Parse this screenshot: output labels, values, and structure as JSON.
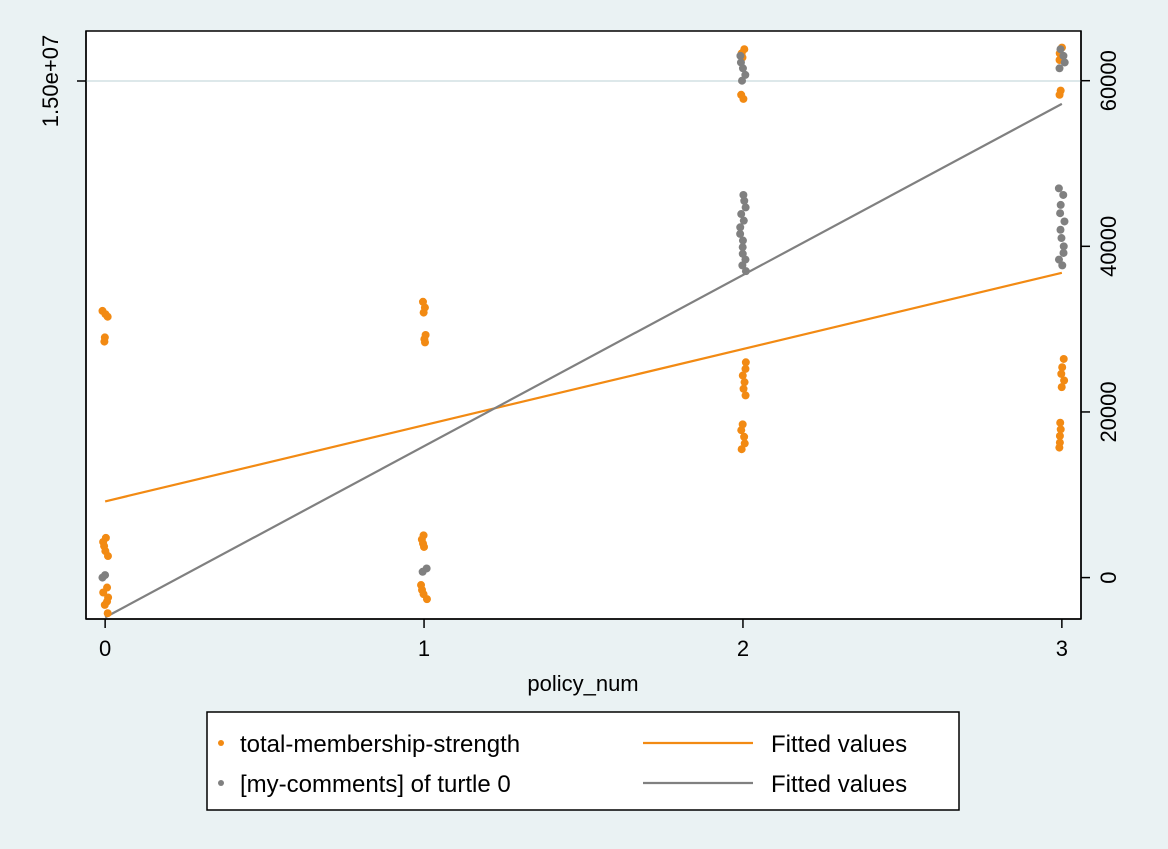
{
  "chart_data": {
    "type": "scatter",
    "xlabel": "policy_num",
    "x_ticks": [
      "0",
      "1",
      "2",
      "3"
    ],
    "xlim": [
      -0.06,
      3.06
    ],
    "left_axis": {
      "label_tick": "1.50e+07",
      "tick_value": 15000000
    },
    "right_axis": {
      "ticks": [
        "0",
        "20000",
        "40000",
        "60000"
      ],
      "ylim": [
        -5000,
        66000
      ]
    },
    "grid": true,
    "legend_position": "bottom",
    "series": [
      {
        "name": "total-membership-strength",
        "kind": "scatter",
        "color": "#f28a13",
        "points": [
          {
            "x": 0,
            "y": 31500
          },
          {
            "x": 0,
            "y": 32200
          },
          {
            "x": 0,
            "y": 31800
          },
          {
            "x": 0,
            "y": 28500
          },
          {
            "x": 0,
            "y": 29000
          },
          {
            "x": 0,
            "y": 4800
          },
          {
            "x": 0,
            "y": 4300
          },
          {
            "x": 0,
            "y": 3800
          },
          {
            "x": 0,
            "y": 3200
          },
          {
            "x": 0,
            "y": 2600
          },
          {
            "x": 0,
            "y": -1200
          },
          {
            "x": 0,
            "y": -1800
          },
          {
            "x": 0,
            "y": -2400
          },
          {
            "x": 0,
            "y": -2900
          },
          {
            "x": 0,
            "y": -3300
          },
          {
            "x": 0,
            "y": -4300
          },
          {
            "x": 1,
            "y": 32000
          },
          {
            "x": 1,
            "y": 32600
          },
          {
            "x": 1,
            "y": 33300
          },
          {
            "x": 1,
            "y": 29300
          },
          {
            "x": 1,
            "y": 28800
          },
          {
            "x": 1,
            "y": 28400
          },
          {
            "x": 1,
            "y": 5100
          },
          {
            "x": 1,
            "y": 4600
          },
          {
            "x": 1,
            "y": 4100
          },
          {
            "x": 1,
            "y": 3700
          },
          {
            "x": 1,
            "y": -900
          },
          {
            "x": 1,
            "y": -1500
          },
          {
            "x": 1,
            "y": -2000
          },
          {
            "x": 1,
            "y": -2600
          },
          {
            "x": 2,
            "y": 63800
          },
          {
            "x": 2,
            "y": 63300
          },
          {
            "x": 2,
            "y": 62800
          },
          {
            "x": 2,
            "y": 58300
          },
          {
            "x": 2,
            "y": 57800
          },
          {
            "x": 2,
            "y": 26000
          },
          {
            "x": 2,
            "y": 25200
          },
          {
            "x": 2,
            "y": 24400
          },
          {
            "x": 2,
            "y": 23600
          },
          {
            "x": 2,
            "y": 22800
          },
          {
            "x": 2,
            "y": 22000
          },
          {
            "x": 2,
            "y": 18500
          },
          {
            "x": 2,
            "y": 17800
          },
          {
            "x": 2,
            "y": 17000
          },
          {
            "x": 2,
            "y": 16200
          },
          {
            "x": 2,
            "y": 15500
          },
          {
            "x": 3,
            "y": 64000
          },
          {
            "x": 3,
            "y": 63300
          },
          {
            "x": 3,
            "y": 62500
          },
          {
            "x": 3,
            "y": 58800
          },
          {
            "x": 3,
            "y": 58300
          },
          {
            "x": 3,
            "y": 26400
          },
          {
            "x": 3,
            "y": 25400
          },
          {
            "x": 3,
            "y": 24600
          },
          {
            "x": 3,
            "y": 23800
          },
          {
            "x": 3,
            "y": 23000
          },
          {
            "x": 3,
            "y": 18700
          },
          {
            "x": 3,
            "y": 17900
          },
          {
            "x": 3,
            "y": 17100
          },
          {
            "x": 3,
            "y": 16300
          },
          {
            "x": 3,
            "y": 15700
          }
        ]
      },
      {
        "name": "[my-comments] of turtle 0",
        "kind": "scatter",
        "color": "#808080",
        "points": [
          {
            "x": 0,
            "y": 0
          },
          {
            "x": 0,
            "y": 300
          },
          {
            "x": 1,
            "y": 700
          },
          {
            "x": 1,
            "y": 1100
          },
          {
            "x": 2,
            "y": 63000
          },
          {
            "x": 2,
            "y": 62200
          },
          {
            "x": 2,
            "y": 61500
          },
          {
            "x": 2,
            "y": 60700
          },
          {
            "x": 2,
            "y": 60000
          },
          {
            "x": 2,
            "y": 46200
          },
          {
            "x": 2,
            "y": 45500
          },
          {
            "x": 2,
            "y": 44700
          },
          {
            "x": 2,
            "y": 43900
          },
          {
            "x": 2,
            "y": 43100
          },
          {
            "x": 2,
            "y": 42300
          },
          {
            "x": 2,
            "y": 41500
          },
          {
            "x": 2,
            "y": 40700
          },
          {
            "x": 2,
            "y": 39900
          },
          {
            "x": 2,
            "y": 39100
          },
          {
            "x": 2,
            "y": 38400
          },
          {
            "x": 2,
            "y": 37700
          },
          {
            "x": 2,
            "y": 37000
          },
          {
            "x": 3,
            "y": 63800
          },
          {
            "x": 3,
            "y": 63000
          },
          {
            "x": 3,
            "y": 62200
          },
          {
            "x": 3,
            "y": 61500
          },
          {
            "x": 3,
            "y": 47000
          },
          {
            "x": 3,
            "y": 46200
          },
          {
            "x": 3,
            "y": 45000
          },
          {
            "x": 3,
            "y": 44000
          },
          {
            "x": 3,
            "y": 43000
          },
          {
            "x": 3,
            "y": 42000
          },
          {
            "x": 3,
            "y": 41000
          },
          {
            "x": 3,
            "y": 40000
          },
          {
            "x": 3,
            "y": 39200
          },
          {
            "x": 3,
            "y": 38400
          },
          {
            "x": 3,
            "y": 37700
          }
        ]
      },
      {
        "name": "Fitted values",
        "kind": "line",
        "color": "#f28a13",
        "points": [
          {
            "x": 0,
            "y": 9200
          },
          {
            "x": 3,
            "y": 36800
          }
        ]
      },
      {
        "name": "Fitted values",
        "kind": "line",
        "color": "#808080",
        "points": [
          {
            "x": 0,
            "y": -4800
          },
          {
            "x": 3,
            "y": 57200
          }
        ]
      }
    ],
    "legend": [
      {
        "label": "total-membership-strength",
        "symbol": "dot",
        "color": "#f28a13"
      },
      {
        "label": "Fitted values",
        "symbol": "line",
        "color": "#f28a13"
      },
      {
        "label": "[my-comments] of turtle 0",
        "symbol": "dot",
        "color": "#808080"
      },
      {
        "label": "Fitted values",
        "symbol": "line",
        "color": "#808080"
      }
    ]
  }
}
